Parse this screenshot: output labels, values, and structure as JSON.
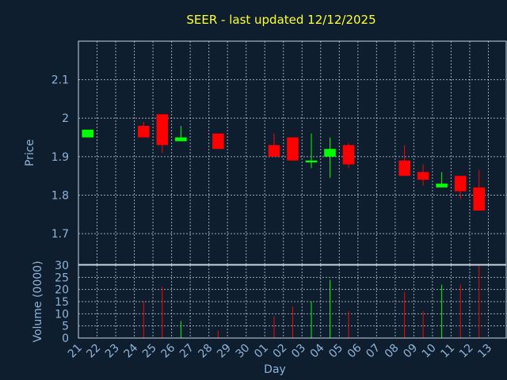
{
  "chart_data": [
    {
      "type": "candlestick",
      "title": "SEER - last updated 12/12/2025",
      "ylabel": "Price",
      "xlabel": "",
      "ylim": [
        1.62,
        2.2
      ],
      "yticks": [
        "2.1",
        "2",
        "1.9",
        "1.8",
        "1.7"
      ],
      "ytick_values": [
        2.1,
        2.0,
        1.9,
        1.8,
        1.7
      ],
      "grid": true,
      "up_color": "#00ff00",
      "down_color": "#ff0000",
      "candles": [
        {
          "day": "21",
          "open": 1.95,
          "close": 1.97,
          "high": 1.97,
          "low": 1.95
        },
        {
          "day": "24",
          "open": 1.98,
          "close": 1.95,
          "high": 1.99,
          "low": 1.95
        },
        {
          "day": "25",
          "open": 2.01,
          "close": 1.93,
          "high": 2.01,
          "low": 1.91
        },
        {
          "day": "26",
          "open": 1.94,
          "close": 1.95,
          "high": 1.98,
          "low": 1.94
        },
        {
          "day": "28",
          "open": 1.96,
          "close": 1.92,
          "high": 1.96,
          "low": 1.92
        },
        {
          "day": "01",
          "open": 1.93,
          "close": 1.9,
          "high": 1.96,
          "low": 1.9
        },
        {
          "day": "02",
          "open": 1.95,
          "close": 1.89,
          "high": 1.95,
          "low": 1.89
        },
        {
          "day": "03",
          "open": 1.885,
          "close": 1.89,
          "high": 1.96,
          "low": 1.87
        },
        {
          "day": "04",
          "open": 1.9,
          "close": 1.92,
          "high": 1.95,
          "low": 1.845
        },
        {
          "day": "05",
          "open": 1.93,
          "close": 1.88,
          "high": 1.935,
          "low": 1.87
        },
        {
          "day": "08",
          "open": 1.89,
          "close": 1.85,
          "high": 1.93,
          "low": 1.85
        },
        {
          "day": "09",
          "open": 1.86,
          "close": 1.84,
          "high": 1.88,
          "low": 1.825
        },
        {
          "day": "10",
          "open": 1.82,
          "close": 1.83,
          "high": 1.86,
          "low": 1.82
        },
        {
          "day": "11",
          "open": 1.85,
          "close": 1.81,
          "high": 1.85,
          "low": 1.79
        },
        {
          "day": "12",
          "open": 1.82,
          "close": 1.76,
          "high": 1.865,
          "low": 1.76
        }
      ]
    },
    {
      "type": "bar",
      "ylabel": "Volume (0000)",
      "xlabel": "Day",
      "ylim": [
        0,
        30
      ],
      "yticks": [
        "30",
        "25",
        "20",
        "15",
        "10",
        "5",
        "0"
      ],
      "ytick_values": [
        30,
        25,
        20,
        15,
        10,
        5,
        0
      ],
      "grid": true,
      "categories": [
        "21",
        "22",
        "23",
        "24",
        "25",
        "26",
        "27",
        "28",
        "29",
        "30",
        "01",
        "02",
        "03",
        "04",
        "05",
        "06",
        "07",
        "08",
        "09",
        "10",
        "11",
        "12",
        "13"
      ],
      "bars": [
        {
          "day": "24",
          "value": 15,
          "color": "#ff0000"
        },
        {
          "day": "25",
          "value": 21,
          "color": "#ff0000"
        },
        {
          "day": "26",
          "value": 7,
          "color": "#00ff00"
        },
        {
          "day": "28",
          "value": 3,
          "color": "#ff0000"
        },
        {
          "day": "01",
          "value": 9,
          "color": "#ff0000"
        },
        {
          "day": "02",
          "value": 13,
          "color": "#ff0000"
        },
        {
          "day": "03",
          "value": 15,
          "color": "#00ff00"
        },
        {
          "day": "04",
          "value": 24,
          "color": "#00ff00"
        },
        {
          "day": "05",
          "value": 11,
          "color": "#ff0000"
        },
        {
          "day": "08",
          "value": 19,
          "color": "#ff0000"
        },
        {
          "day": "09",
          "value": 11,
          "color": "#ff0000"
        },
        {
          "day": "10",
          "value": 22,
          "color": "#00ff00"
        },
        {
          "day": "11",
          "value": 22,
          "color": "#ff0000"
        },
        {
          "day": "12",
          "value": 30,
          "color": "#ff0000"
        }
      ]
    }
  ]
}
